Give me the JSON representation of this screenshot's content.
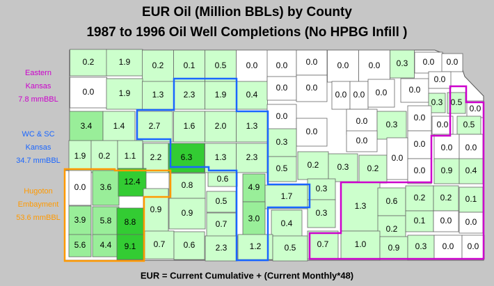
{
  "title": [
    "EUR Oil (Million BBLs) by County",
    "1987 to 1996 Oil Well Completions (No HPBG Infill )"
  ],
  "regions": [
    {
      "lines": [
        "Eastern",
        "Kansas",
        "7.8 mmBBL"
      ],
      "color": "#cc00cc"
    },
    {
      "lines": [
        "WC & SC",
        "Kansas",
        "34.7 mmBBL"
      ],
      "color": "#1a66ff"
    },
    {
      "lines": [
        "Hugoton",
        "Embayment",
        "53.6 mmBBL"
      ],
      "color": "#ff9900"
    }
  ],
  "counties": [
    {
      "label": "0.2",
      "fill": "#ccffcc"
    },
    {
      "label": "1.9",
      "fill": "#ccffcc"
    },
    {
      "label": "0.2",
      "fill": "#ccffcc"
    },
    {
      "label": "0.1",
      "fill": "#ccffcc"
    },
    {
      "label": "0.5",
      "fill": "#ccffcc"
    },
    {
      "label": "0.0",
      "fill": "#ffffff"
    },
    {
      "label": "0.0",
      "fill": "#ffffff"
    },
    {
      "label": "0.0",
      "fill": "#ffffff"
    },
    {
      "label": "0.0",
      "fill": "#ffffff"
    },
    {
      "label": "0.0",
      "fill": "#ffffff"
    },
    {
      "label": "0.3",
      "fill": "#ccffcc"
    },
    {
      "label": "0.0",
      "fill": "#ffffff"
    },
    {
      "label": "0.0",
      "fill": "#ffffff"
    },
    {
      "label": "0.0",
      "fill": "#ffffff"
    },
    {
      "label": "1.9",
      "fill": "#ccffcc"
    },
    {
      "label": "1.3",
      "fill": "#ccffcc"
    },
    {
      "label": "2.3",
      "fill": "#ccffcc"
    },
    {
      "label": "1.9",
      "fill": "#ccffcc"
    },
    {
      "label": "0.4",
      "fill": "#ccffcc"
    },
    {
      "label": "0.0",
      "fill": "#ffffff"
    },
    {
      "label": "0.0",
      "fill": "#ffffff"
    },
    {
      "label": "0.0",
      "fill": "#ffffff"
    },
    {
      "label": "0.0",
      "fill": "#ffffff"
    },
    {
      "label": "0.0",
      "fill": "#ffffff"
    },
    {
      "label": "0.0",
      "fill": "#ffffff"
    },
    {
      "label": "0.0",
      "fill": "#ffffff"
    },
    {
      "label": "0.3",
      "fill": "#ccffcc"
    },
    {
      "label": "0.5",
      "fill": "#ccffcc"
    },
    {
      "label": "0.0",
      "fill": "#ffffff"
    },
    {
      "label": "3.4",
      "fill": "#99ee99"
    },
    {
      "label": "1.4",
      "fill": "#ccffcc"
    },
    {
      "label": "2.7",
      "fill": "#ccffcc"
    },
    {
      "label": "1.6",
      "fill": "#ccffcc"
    },
    {
      "label": "2.0",
      "fill": "#ccffcc"
    },
    {
      "label": "1.3",
      "fill": "#ccffcc"
    },
    {
      "label": "0.0",
      "fill": "#ffffff"
    },
    {
      "label": "0.0",
      "fill": "#ffffff"
    },
    {
      "label": "0.0",
      "fill": "#ffffff"
    },
    {
      "label": "0.3",
      "fill": "#ccffcc"
    },
    {
      "label": "0.0",
      "fill": "#ffffff"
    },
    {
      "label": "0.0",
      "fill": "#ffffff"
    },
    {
      "label": "0.5",
      "fill": "#ccffcc"
    },
    {
      "label": "1.9",
      "fill": "#ccffcc"
    },
    {
      "label": "0.2",
      "fill": "#ccffcc"
    },
    {
      "label": "1.1",
      "fill": "#ccffcc"
    },
    {
      "label": "2.2",
      "fill": "#ccffcc"
    },
    {
      "label": "6.3",
      "fill": "#33cc33"
    },
    {
      "label": "1.3",
      "fill": "#ccffcc"
    },
    {
      "label": "2.3",
      "fill": "#ccffcc"
    },
    {
      "label": "0.3",
      "fill": "#ccffcc"
    },
    {
      "label": "0.0",
      "fill": "#ffffff"
    },
    {
      "label": "0.0",
      "fill": "#ffffff"
    },
    {
      "label": "0.0",
      "fill": "#ffffff"
    },
    {
      "label": "0.0",
      "fill": "#ffffff"
    },
    {
      "label": "0.5",
      "fill": "#ccffcc"
    },
    {
      "label": "0.2",
      "fill": "#ccffcc"
    },
    {
      "label": "0.3",
      "fill": "#ccffcc"
    },
    {
      "label": "0.2",
      "fill": "#ccffcc"
    },
    {
      "label": "0.0",
      "fill": "#ffffff"
    },
    {
      "label": "0.0",
      "fill": "#ffffff"
    },
    {
      "label": "0.9",
      "fill": "#ccffcc"
    },
    {
      "label": "0.4",
      "fill": "#ccffcc"
    },
    {
      "label": "0.0",
      "fill": "#ffffff"
    },
    {
      "label": "3.6",
      "fill": "#99ee99"
    },
    {
      "label": "12.4",
      "fill": "#33cc33"
    },
    {
      "label": "0.8",
      "fill": "#ccffcc"
    },
    {
      "label": "0.6",
      "fill": "#ccffcc"
    },
    {
      "label": "4.9",
      "fill": "#99ee99"
    },
    {
      "label": "1.7",
      "fill": "#ccffcc"
    },
    {
      "label": "0.3",
      "fill": "#ccffcc"
    },
    {
      "label": "0.9",
      "fill": "#ccffcc"
    },
    {
      "label": "0.9",
      "fill": "#ccffcc"
    },
    {
      "label": "0.5",
      "fill": "#ccffcc"
    },
    {
      "label": "0.7",
      "fill": "#ccffcc"
    },
    {
      "label": "3.0",
      "fill": "#99ee99"
    },
    {
      "label": "0.4",
      "fill": "#ccffcc"
    },
    {
      "label": "0.3",
      "fill": "#ccffcc"
    },
    {
      "label": "1.3",
      "fill": "#ccffcc"
    },
    {
      "label": "0.6",
      "fill": "#ccffcc"
    },
    {
      "label": "0.2",
      "fill": "#ccffcc"
    },
    {
      "label": "0.2",
      "fill": "#ccffcc"
    },
    {
      "label": "0.1",
      "fill": "#ccffcc"
    },
    {
      "label": "3.9",
      "fill": "#99ee99"
    },
    {
      "label": "5.8",
      "fill": "#99ee99"
    },
    {
      "label": "8.8",
      "fill": "#33cc33"
    },
    {
      "label": "0.2",
      "fill": "#ccffcc"
    },
    {
      "label": "0.1",
      "fill": "#ccffcc"
    },
    {
      "label": "0.0",
      "fill": "#ffffff"
    },
    {
      "label": "0.0",
      "fill": "#ffffff"
    },
    {
      "label": "5.6",
      "fill": "#99ee99"
    },
    {
      "label": "4.4",
      "fill": "#99ee99"
    },
    {
      "label": "9.1",
      "fill": "#33cc33"
    },
    {
      "label": "0.7",
      "fill": "#ccffcc"
    },
    {
      "label": "0.6",
      "fill": "#ccffcc"
    },
    {
      "label": "2.3",
      "fill": "#ccffcc"
    },
    {
      "label": "1.2",
      "fill": "#ccffcc"
    },
    {
      "label": "0.5",
      "fill": "#ccffcc"
    },
    {
      "label": "0.7",
      "fill": "#ccffcc"
    },
    {
      "label": "1.0",
      "fill": "#ccffcc"
    },
    {
      "label": "0.9",
      "fill": "#ccffcc"
    },
    {
      "label": "0.3",
      "fill": "#ccffcc"
    },
    {
      "label": "0.0",
      "fill": "#ffffff"
    },
    {
      "label": "0.0",
      "fill": "#ffffff"
    }
  ],
  "footer": "EUR = Current Cumulative + (Current Monthly*48)"
}
